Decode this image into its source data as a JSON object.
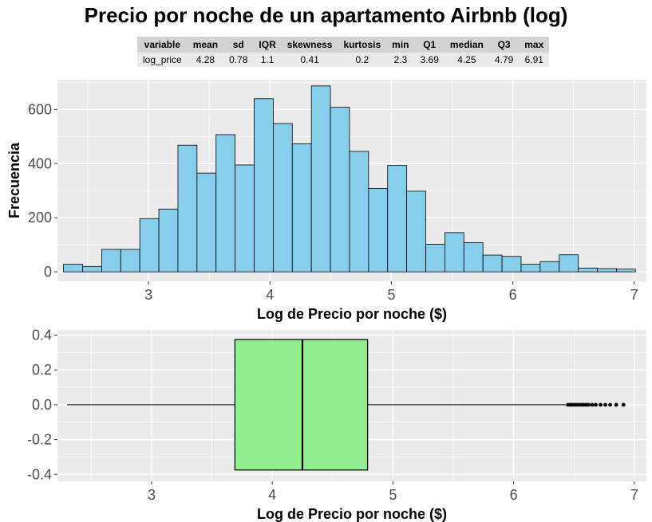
{
  "title": "Precio por noche de un apartamento Airbnb (log)",
  "stats_table": {
    "headers": [
      "variable",
      "mean",
      "sd",
      "IQR",
      "skewness",
      "kurtosis",
      "min",
      "Q1",
      "median",
      "Q3",
      "max"
    ],
    "rows": [
      [
        "log_price",
        "4.28",
        "0.78",
        "1.1",
        "0.41",
        "0.2",
        "2.3",
        "3.69",
        "4.25",
        "4.79",
        "6.91"
      ]
    ]
  },
  "chart_data": [
    {
      "type": "histogram",
      "xlabel": "Log de Precio por noche ($)",
      "ylabel": "Frecuencia",
      "xlim": [
        2.25,
        7.1
      ],
      "ylim": [
        -35,
        710
      ],
      "xticks": [
        3,
        4,
        5,
        6,
        7
      ],
      "yticks": [
        0,
        200,
        400,
        600
      ],
      "bin_width": 0.157,
      "bins_start": [
        2.3,
        2.457,
        2.614,
        2.771,
        2.928,
        3.085,
        3.242,
        3.399,
        3.556,
        3.713,
        3.87,
        4.027,
        4.184,
        4.341,
        4.498,
        4.655,
        4.812,
        4.969,
        5.126,
        5.283,
        5.44,
        5.597,
        5.754,
        5.911,
        6.068,
        6.225,
        6.382,
        6.539,
        6.696,
        6.853
      ],
      "counts": [
        28,
        20,
        83,
        83,
        197,
        232,
        468,
        365,
        507,
        395,
        640,
        548,
        473,
        687,
        608,
        445,
        308,
        393,
        298,
        102,
        145,
        108,
        62,
        57,
        28,
        38,
        63,
        14,
        12,
        10
      ],
      "fill": "#87ceeb",
      "stroke": "#000000"
    },
    {
      "type": "boxplot",
      "xlabel": "Log de Precio por noche ($)",
      "xlim": [
        2.22,
        7.1
      ],
      "ylim": [
        -0.44,
        0.43
      ],
      "xticks": [
        3,
        4,
        5,
        6,
        7
      ],
      "yticks": [
        0.4,
        0.2,
        0.0,
        -0.2,
        -0.4
      ],
      "ytick_labels": [
        "0.4",
        "0.2",
        "0.0",
        "-0.2",
        "-0.4"
      ],
      "whisker_low": 2.3,
      "q1": 3.69,
      "median": 4.25,
      "q3": 4.79,
      "whisker_high": 6.44,
      "box_half_height": 0.375,
      "outliers": [
        6.45,
        6.47,
        6.48,
        6.5,
        6.52,
        6.54,
        6.56,
        6.58,
        6.6,
        6.62,
        6.65,
        6.68,
        6.72,
        6.76,
        6.8,
        6.85,
        6.91
      ],
      "fill": "#90ee90",
      "stroke": "#000000"
    }
  ]
}
